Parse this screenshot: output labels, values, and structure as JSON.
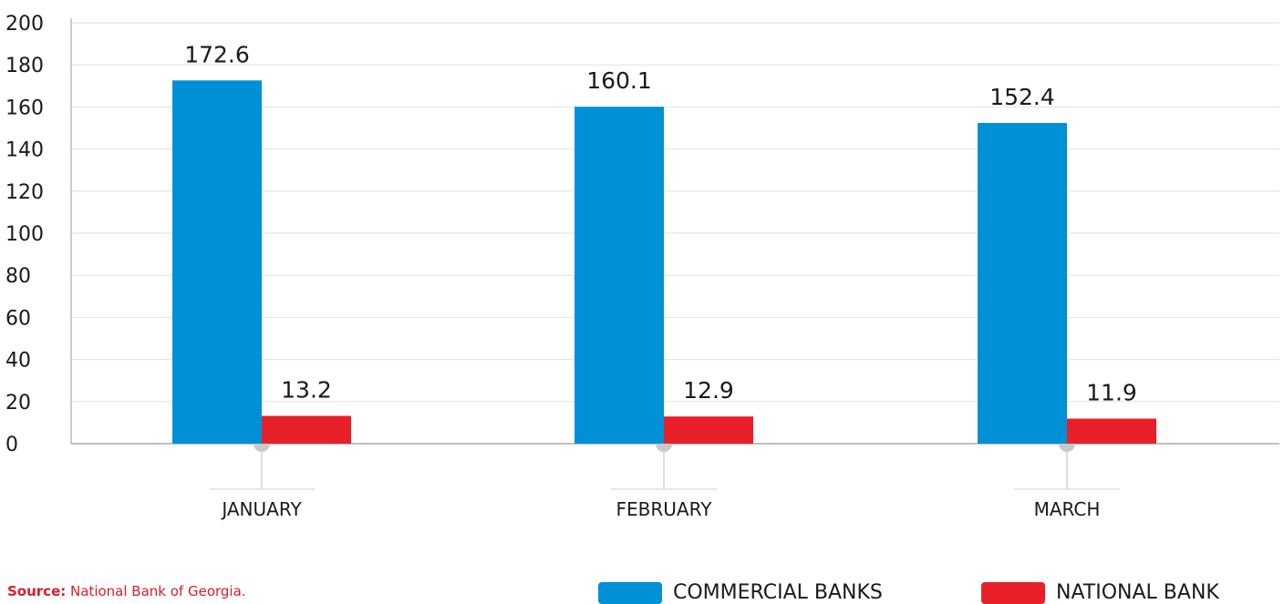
{
  "chart_data": {
    "type": "bar",
    "categories": [
      "JANUARY",
      "FEBRUARY",
      "MARCH"
    ],
    "series": [
      {
        "name": "COMMERCIAL BANKS",
        "values": [
          172.6,
          160.1,
          152.4
        ],
        "labels": [
          "172.6",
          "160.1",
          "152.4"
        ],
        "color": "#0090d5"
      },
      {
        "name": "NATIONAL BANK",
        "values": [
          13.2,
          12.9,
          11.9
        ],
        "labels": [
          "13.2",
          "12.9",
          "11.9"
        ],
        "color": "#e8202a"
      }
    ],
    "yticks": [
      "0",
      "20",
      "40",
      "60",
      "80",
      "100",
      "120",
      "140",
      "160",
      "180",
      "200"
    ],
    "ylim": [
      0,
      200
    ],
    "grid": true,
    "legend": "bottom-right"
  },
  "source": {
    "label": "Source:",
    "text": "National Bank of Georgia."
  }
}
